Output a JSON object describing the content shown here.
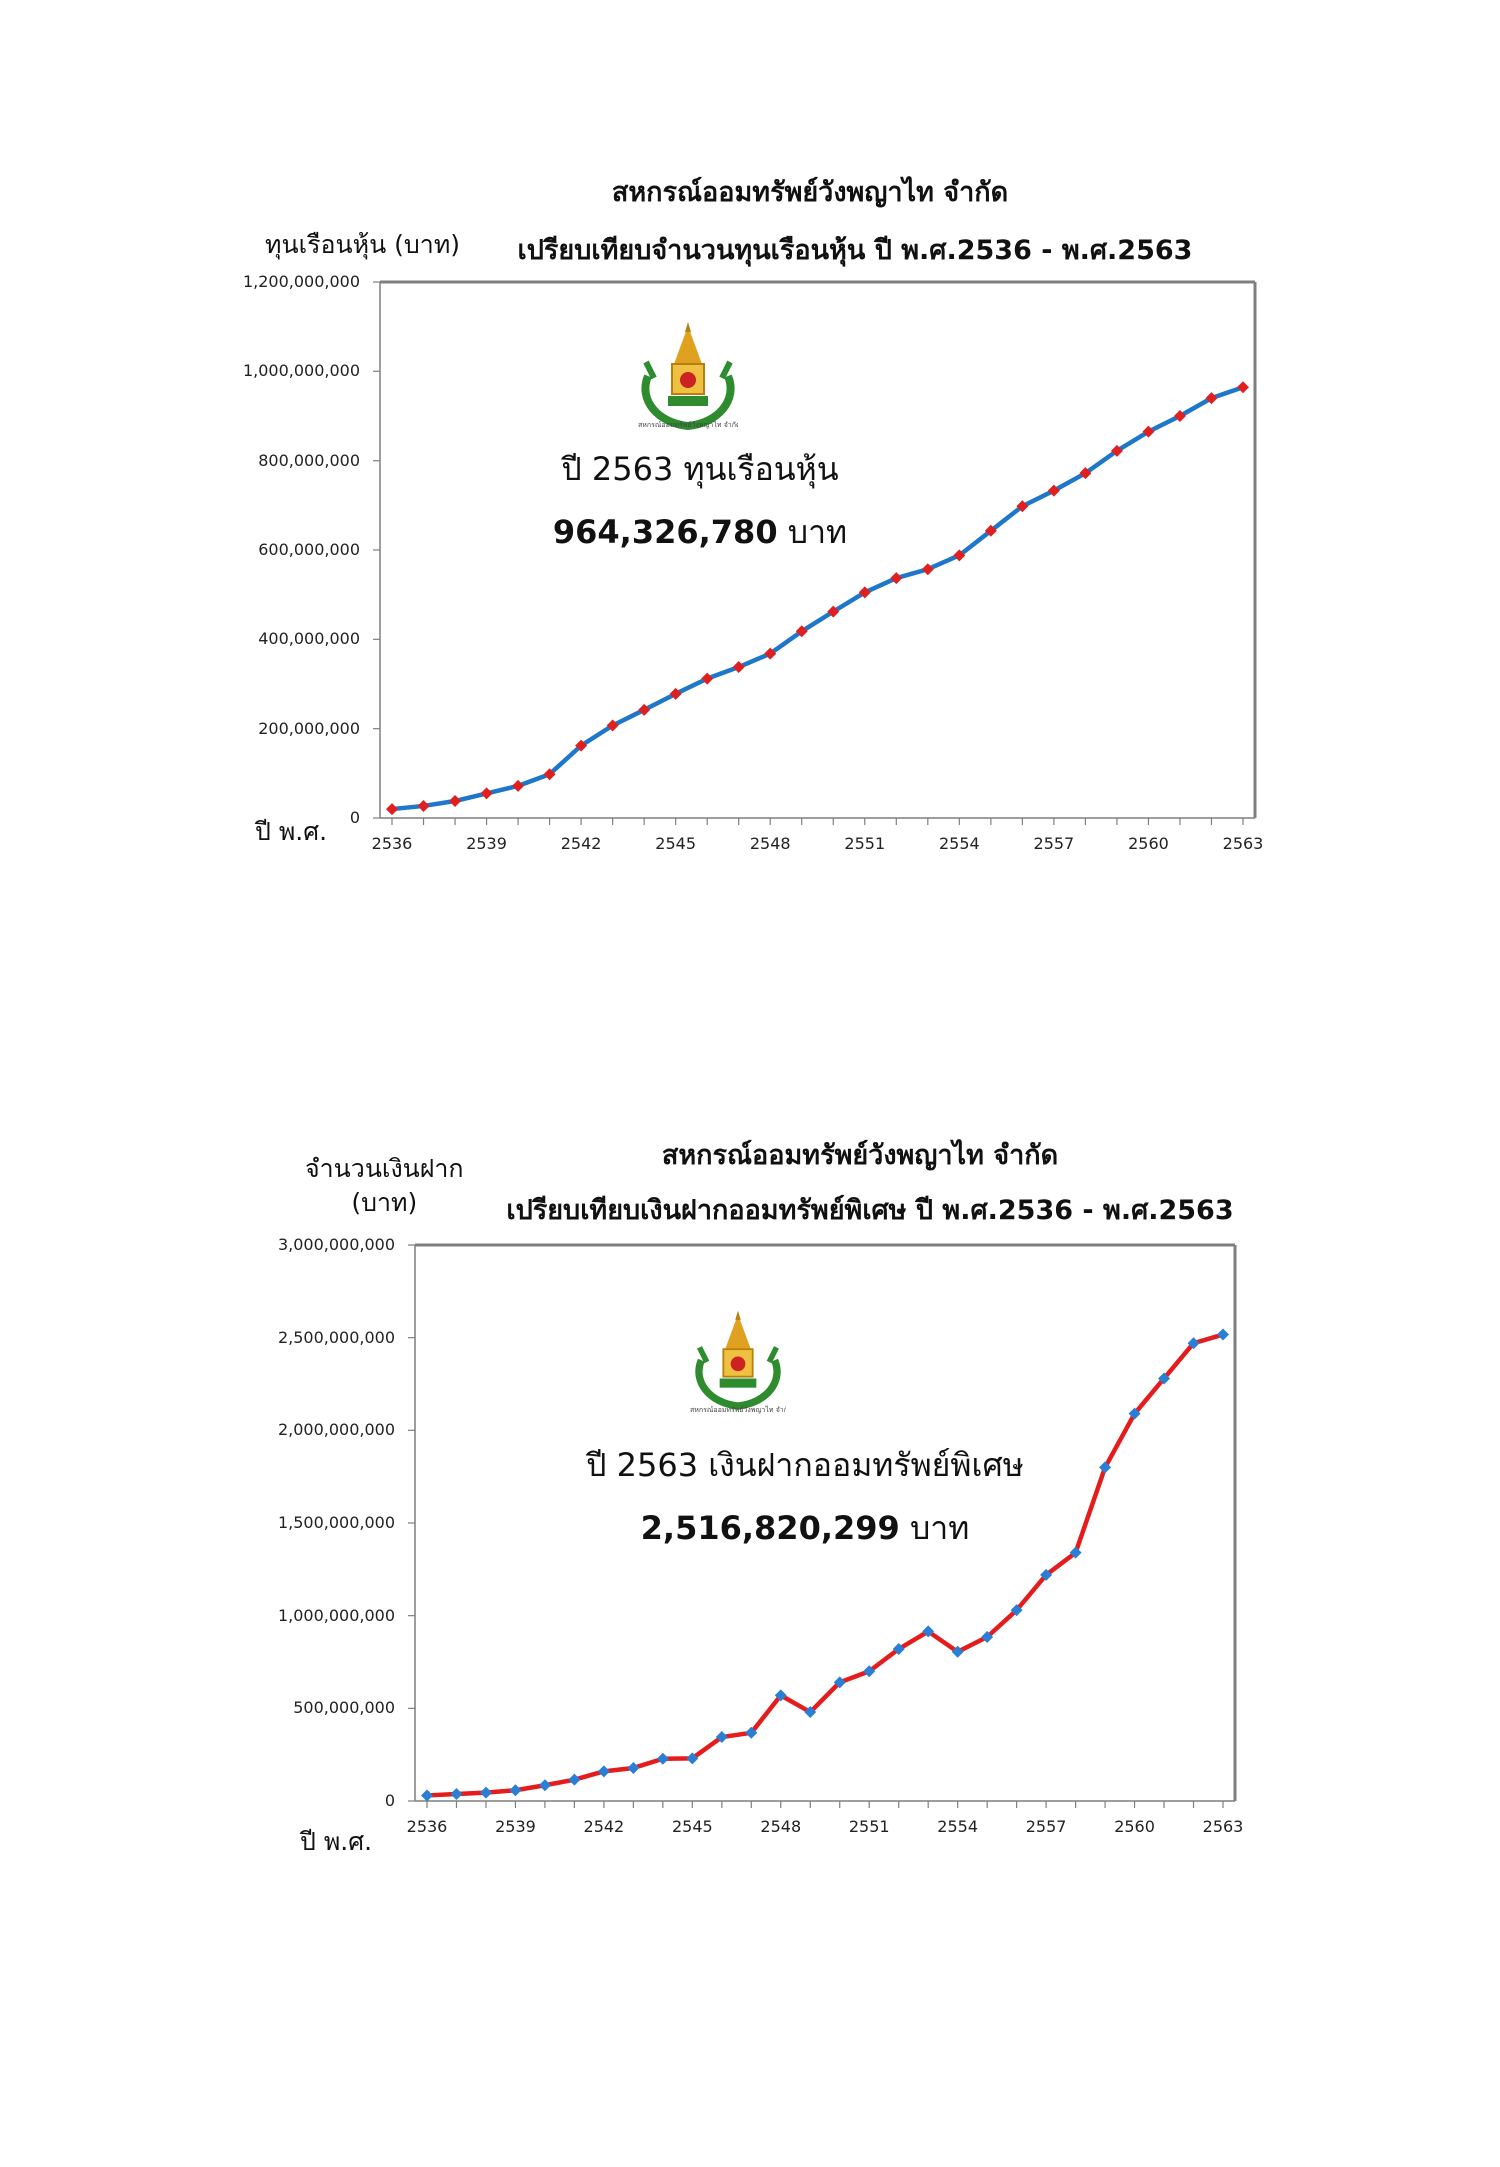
{
  "colors": {
    "frame": "#7f7f7f",
    "axis": "#7f7f7f"
  },
  "chart_data": [
    {
      "type": "line",
      "title": "สหกรณ์ออมทรัพย์วังพญาไท จำกัด",
      "subtitle": "เปรียบเทียบจำนวนทุนเรือนหุ้น ปี พ.ศ.2536 - พ.ศ.2563",
      "ylabel": "ทุนเรือนหุ้น (บาท)",
      "xlabel": "ปี พ.ศ.",
      "ylim": [
        0,
        1200000000
      ],
      "yticks": [
        0,
        200000000,
        400000000,
        600000000,
        800000000,
        1000000000,
        1200000000
      ],
      "ytick_labels": [
        "0",
        "200,000,000",
        "400,000,000",
        "600,000,000",
        "800,000,000",
        "1,000,000,000",
        "1,200,000,000"
      ],
      "xtick_labels": [
        "2536",
        "2539",
        "2542",
        "2545",
        "2548",
        "2551",
        "2554",
        "2557",
        "2560",
        "2563"
      ],
      "line_color": "#1f77c9",
      "marker_color": "#e02020",
      "marker": "diamond",
      "x": [
        2536,
        2537,
        2538,
        2539,
        2540,
        2541,
        2542,
        2543,
        2544,
        2545,
        2546,
        2547,
        2548,
        2549,
        2550,
        2551,
        2552,
        2553,
        2554,
        2555,
        2556,
        2557,
        2558,
        2559,
        2560,
        2561,
        2562,
        2563
      ],
      "values": [
        20000000,
        27000000,
        38000000,
        55000000,
        72000000,
        98000000,
        162000000,
        207000000,
        242000000,
        278000000,
        312000000,
        338000000,
        368000000,
        418000000,
        462000000,
        505000000,
        537000000,
        557000000,
        588000000,
        643000000,
        698000000,
        733000000,
        772000000,
        822000000,
        865000000,
        900000000,
        940000000,
        964326780
      ],
      "annotation": {
        "line1": "ปี 2563 ทุนเรือนหุ้น",
        "value": "964,326,780",
        "unit": "บาท"
      },
      "logo_caption": "สหกรณ์ออมทรัพย์วังพญาไท จำกัด"
    },
    {
      "type": "line",
      "title": "สหกรณ์ออมทรัพย์วังพญาไท จำกัด",
      "subtitle": "เปรียบเทียบเงินฝากออมทรัพย์พิเศษ ปี พ.ศ.2536 - พ.ศ.2563",
      "ylabel_line1": "จำนวนเงินฝาก",
      "ylabel_line2": "(บาท)",
      "xlabel": "ปี พ.ศ.",
      "ylim": [
        0,
        3000000000
      ],
      "yticks": [
        0,
        500000000,
        1000000000,
        1500000000,
        2000000000,
        2500000000,
        3000000000
      ],
      "ytick_labels": [
        "0",
        "500,000,000",
        "1,000,000,000",
        "1,500,000,000",
        "2,000,000,000",
        "2,500,000,000",
        "3,000,000,000"
      ],
      "xtick_labels": [
        "2536",
        "2539",
        "2542",
        "2545",
        "2548",
        "2551",
        "2554",
        "2557",
        "2560",
        "2563"
      ],
      "line_color": "#e51c1c",
      "marker_color": "#2a7fd4",
      "marker": "diamond",
      "x": [
        2536,
        2537,
        2538,
        2539,
        2540,
        2541,
        2542,
        2543,
        2544,
        2545,
        2546,
        2547,
        2548,
        2549,
        2550,
        2551,
        2552,
        2553,
        2554,
        2555,
        2556,
        2557,
        2558,
        2559,
        2560,
        2561,
        2562,
        2563
      ],
      "values": [
        30000000,
        38000000,
        45000000,
        58000000,
        85000000,
        115000000,
        160000000,
        178000000,
        228000000,
        230000000,
        345000000,
        368000000,
        570000000,
        480000000,
        640000000,
        700000000,
        820000000,
        915000000,
        805000000,
        885000000,
        1030000000,
        1220000000,
        1340000000,
        1800000000,
        2090000000,
        2280000000,
        2470000000,
        2516820299
      ],
      "annotation": {
        "line1": "ปี 2563 เงินฝากออมทรัพย์พิเศษ",
        "value": "2,516,820,299",
        "unit": "บาท"
      },
      "logo_caption": "สหกรณ์ออมทรัพย์วังพญาไท จำกัด"
    }
  ]
}
